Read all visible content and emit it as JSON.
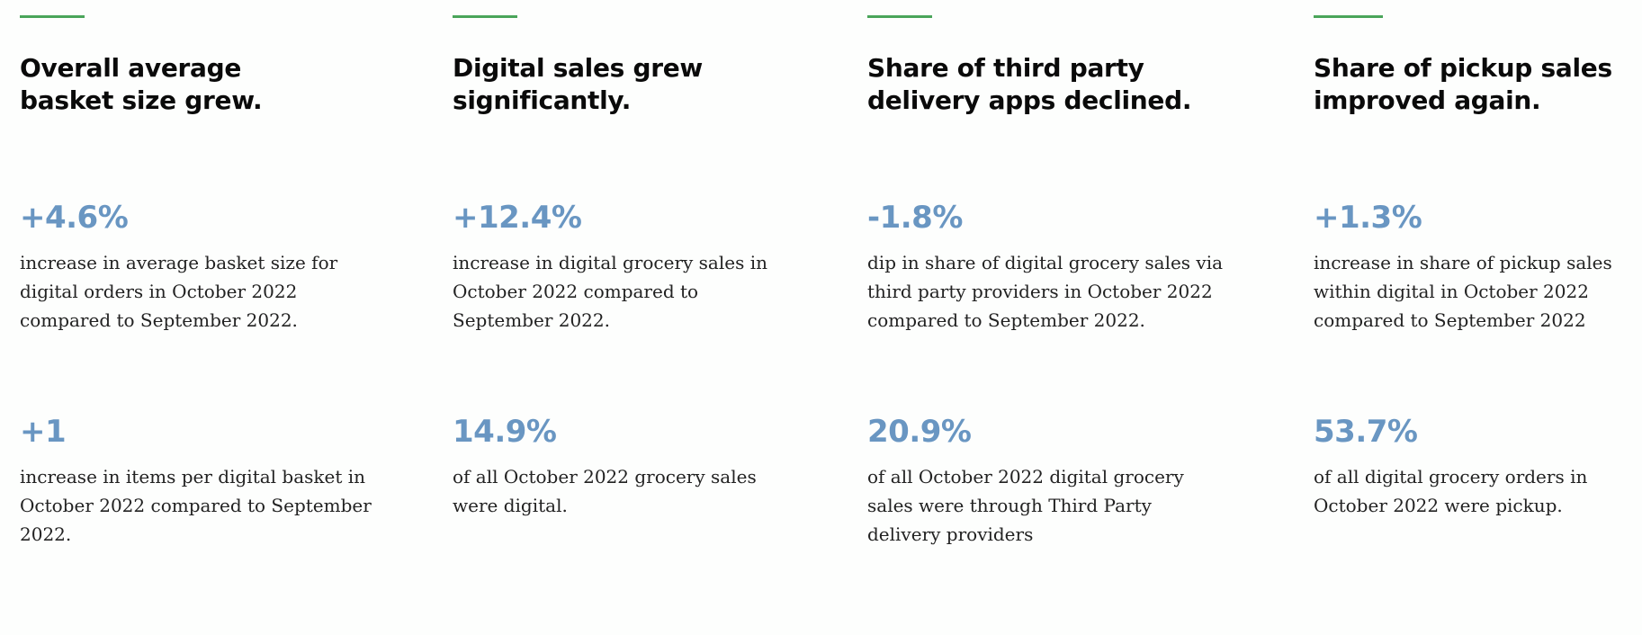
{
  "accent_color": "#4aa55a",
  "stat_color": "#6996c2",
  "cards": [
    {
      "title": "Overall average basket size grew.",
      "stats": [
        {
          "value": "+4.6%",
          "text": "increase in average basket size for digital orders in October 2022 compared to September 2022."
        },
        {
          "value": "+1",
          "text": "increase in items per digital basket in October 2022 compared to September 2022."
        }
      ]
    },
    {
      "title": "Digital sales grew significantly.",
      "stats": [
        {
          "value": "+12.4%",
          "text": "increase in digital grocery sales in October 2022 compared to September 2022."
        },
        {
          "value": "14.9%",
          "text": "of all October 2022 grocery sales were digital."
        }
      ]
    },
    {
      "title": "Share of third party delivery apps declined.",
      "stats": [
        {
          "value": "-1.8%",
          "text": "dip in share of digital grocery sales via third party providers in October 2022 compared to September 2022."
        },
        {
          "value": "20.9%",
          "text": "of all October 2022 digital grocery sales were through Third Party delivery providers"
        }
      ]
    },
    {
      "title": "Share of pickup sales improved again.",
      "stats": [
        {
          "value": "+1.3%",
          "text": "increase in share of pickup sales within digital in October 2022 compared to September 2022"
        },
        {
          "value": "53.7%",
          "text": "of all digital grocery orders in October 2022 were pickup."
        }
      ]
    }
  ]
}
